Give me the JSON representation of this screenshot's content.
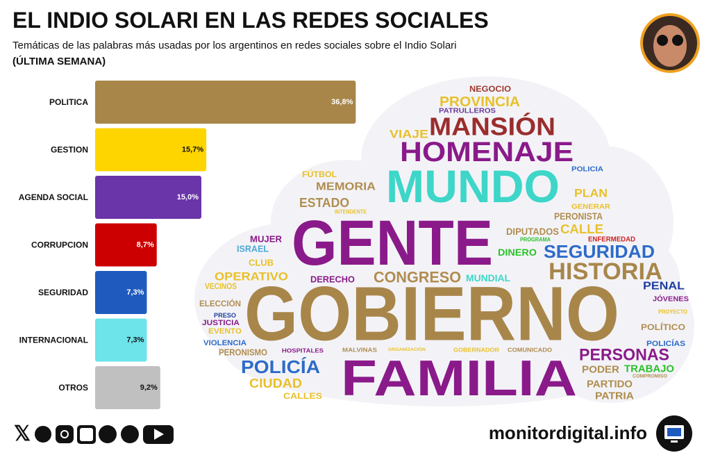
{
  "header": {
    "title": "EL INDIO SOLARI EN LAS REDES SOCIALES",
    "subtitle": "Temáticas de las palabras más usadas por los argentinos en redes sociales sobre el Indio Solari",
    "period": "(ÚLTIMA SEMANA)"
  },
  "chart_data": {
    "type": "bar",
    "orientation": "horizontal",
    "categories": [
      "POLITICA",
      "GESTION",
      "AGENDA SOCIAL",
      "CORRUPCION",
      "SEGURIDAD",
      "INTERNACIONAL",
      "OTROS"
    ],
    "values": [
      36.8,
      15.7,
      15.0,
      8.7,
      7.3,
      7.3,
      9.2
    ],
    "value_labels": [
      "36,8%",
      "15,7%",
      "15,0%",
      "8,7%",
      "7,3%",
      "7,3%",
      "9,2%"
    ],
    "colors": [
      "#a8864a",
      "#ffd500",
      "#6a35a8",
      "#cc0000",
      "#1f5bbf",
      "#6de3ea",
      "#c0c0c0"
    ]
  },
  "word_cloud": {
    "words": [
      {
        "text": "NEGOCIO",
        "color": "#a0392f"
      },
      {
        "text": "PROVINCIA",
        "color": "#e8c02a"
      },
      {
        "text": "PATRULLEROS",
        "color": "#6a3a9a"
      },
      {
        "text": "MANSIÓN",
        "color": "#9b2d2d"
      },
      {
        "text": "VIAJE",
        "color": "#e8c02a"
      },
      {
        "text": "HOMENAJE",
        "color": "#8a1a8a"
      },
      {
        "text": "FÚTBOL",
        "color": "#e8c02a"
      },
      {
        "text": "POLICIA",
        "color": "#2d6bc9"
      },
      {
        "text": "MUNDO",
        "color": "#3dd6c8"
      },
      {
        "text": "MEMORIA",
        "color": "#b08d50"
      },
      {
        "text": "PLAN",
        "color": "#e8c02a"
      },
      {
        "text": "ESTADO",
        "color": "#b08d50"
      },
      {
        "text": "INTENDENTE",
        "color": "#e8c02a"
      },
      {
        "text": "GENERAR",
        "color": "#e8c02a"
      },
      {
        "text": "PERONISTA",
        "color": "#b08d50"
      },
      {
        "text": "GENTE",
        "color": "#8a1a8a"
      },
      {
        "text": "CALLE",
        "color": "#e8c02a"
      },
      {
        "text": "DIPUTADOS",
        "color": "#b08d50"
      },
      {
        "text": "ENFERMEDAD",
        "color": "#cc2222"
      },
      {
        "text": "PROGRAMA",
        "color": "#2bc02b"
      },
      {
        "text": "MUJER",
        "color": "#8a1a8a"
      },
      {
        "text": "ISRAEL",
        "color": "#4aa8d8"
      },
      {
        "text": "DINERO",
        "color": "#2bc02b"
      },
      {
        "text": "SEGURIDAD",
        "color": "#2d6bc9"
      },
      {
        "text": "CLUB",
        "color": "#e8c02a"
      },
      {
        "text": "HISTORIA",
        "color": "#a8864a"
      },
      {
        "text": "OPERATIVO",
        "color": "#e8c02a"
      },
      {
        "text": "DERECHO",
        "color": "#8a1a8a"
      },
      {
        "text": "CONGRESO",
        "color": "#b08d50"
      },
      {
        "text": "MUNDIAL",
        "color": "#3dd6c8"
      },
      {
        "text": "VECINOS",
        "color": "#e8c02a"
      },
      {
        "text": "PENAL",
        "color": "#1f3f9f"
      },
      {
        "text": "GOBIERNO",
        "color": "#a8864a"
      },
      {
        "text": "ELECCIÓN",
        "color": "#b08d50"
      },
      {
        "text": "JÓVENES",
        "color": "#8a1a8a"
      },
      {
        "text": "PRESO",
        "color": "#1f3f9f"
      },
      {
        "text": "PROYECTO",
        "color": "#e8c02a"
      },
      {
        "text": "JUSTICIA",
        "color": "#8a1a8a"
      },
      {
        "text": "EVENTO",
        "color": "#e8c02a"
      },
      {
        "text": "POLÍTICO",
        "color": "#b08d50"
      },
      {
        "text": "VIOLENCIA",
        "color": "#2d6bc9"
      },
      {
        "text": "POLICÍAS",
        "color": "#2d6bc9"
      },
      {
        "text": "PERONISMO",
        "color": "#b08d50"
      },
      {
        "text": "HOSPITALES",
        "color": "#8a1a8a"
      },
      {
        "text": "MALVINAS",
        "color": "#b08d50"
      },
      {
        "text": "ORGANIZACIÓN",
        "color": "#e8c02a"
      },
      {
        "text": "GOBERNADOR",
        "color": "#e8c02a"
      },
      {
        "text": "COMUNICADO",
        "color": "#b08d50"
      },
      {
        "text": "PERSONAS",
        "color": "#8a1a8a"
      },
      {
        "text": "FAMILIA",
        "color": "#8a1a8a"
      },
      {
        "text": "POLICÍA",
        "color": "#2d6bc9"
      },
      {
        "text": "PODER",
        "color": "#b08d50"
      },
      {
        "text": "TRABAJO",
        "color": "#2bc02b"
      },
      {
        "text": "COMPROMISO",
        "color": "#b08d50"
      },
      {
        "text": "CIUDAD",
        "color": "#e8c02a"
      },
      {
        "text": "PARTIDO",
        "color": "#b08d50"
      },
      {
        "text": "CALLES",
        "color": "#e8c02a"
      },
      {
        "text": "PATRIA",
        "color": "#b08d50"
      }
    ]
  },
  "footer": {
    "site": "monitordigital.info"
  }
}
